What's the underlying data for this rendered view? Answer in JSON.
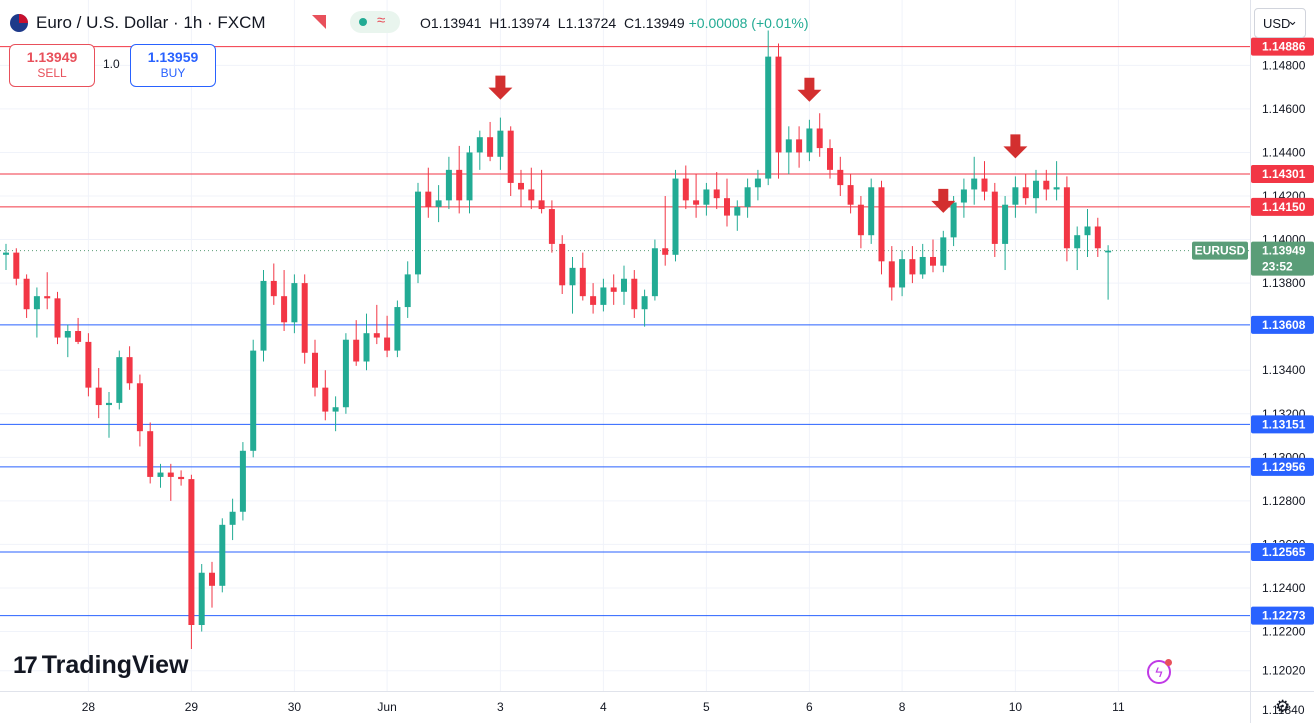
{
  "header": {
    "title": "Euro / U.S. Dollar · 1h · FXCM",
    "ohlc": {
      "open_label": "O",
      "open": "1.13941",
      "high_label": "H",
      "high": "1.13974",
      "low_label": "L",
      "low": "1.13724",
      "close_label": "C",
      "close": "1.13949",
      "change": "+0.00008 (+0.01%)"
    },
    "flag_icon": "euro-us-flag-icon",
    "pill_icon": "wave-icon",
    "pill_symbol": "≈"
  },
  "trade": {
    "sell_price": "1.13949",
    "sell_label": "SELL",
    "quantity": "1.0",
    "buy_price": "1.13959",
    "buy_label": "BUY"
  },
  "currency_button": "USD",
  "brand": {
    "logo_mark": "17",
    "logo_text": "TradingView"
  },
  "bolt_symbol": "ϟ",
  "gear_symbol": "⚙",
  "colors": {
    "bull": "#22ab94",
    "bear": "#f23645",
    "resistance": "#f23645",
    "support": "#2962ff",
    "current_price": "#5a9d78",
    "arrow": "#d32f2f"
  },
  "chart_data": {
    "type": "candlestick",
    "symbol_badge": "EURUSD",
    "current_price": "1.13949",
    "countdown": "23:52",
    "ylim": [
      1.1178,
      1.151
    ],
    "y_ticks": [
      "1.14800",
      "1.14600",
      "1.14400",
      "1.14200",
      "1.14000",
      "1.13800",
      "1.13400",
      "1.13200",
      "1.13000",
      "1.12800",
      "1.12600",
      "1.12400",
      "1.12200",
      "1.12020",
      "1.11840"
    ],
    "x_ticks": [
      {
        "label": "28",
        "candle": 8
      },
      {
        "label": "29",
        "candle": 18
      },
      {
        "label": "30",
        "candle": 28
      },
      {
        "label": "Jun",
        "candle": 37
      },
      {
        "label": "3",
        "candle": 48
      },
      {
        "label": "4",
        "candle": 58
      },
      {
        "label": "5",
        "candle": 68
      },
      {
        "label": "6",
        "candle": 78
      },
      {
        "label": "8",
        "candle": 87
      },
      {
        "label": "10",
        "candle": 98
      },
      {
        "label": "11",
        "candle": 108
      }
    ],
    "resistance_levels": [
      "1.14886",
      "1.14301",
      "1.14150"
    ],
    "support_levels": [
      "1.13608",
      "1.13151",
      "1.12956",
      "1.12565",
      "1.12273"
    ],
    "arrows_at_candles": [
      48,
      78,
      91,
      98
    ],
    "candles": [
      [
        1.1393,
        1.1398,
        1.1386,
        1.1394
      ],
      [
        1.1394,
        1.1396,
        1.1379,
        1.1382
      ],
      [
        1.1382,
        1.1384,
        1.1364,
        1.1368
      ],
      [
        1.1368,
        1.1378,
        1.1355,
        1.1374
      ],
      [
        1.1374,
        1.1385,
        1.1368,
        1.1373
      ],
      [
        1.1373,
        1.1376,
        1.1352,
        1.1355
      ],
      [
        1.1355,
        1.1361,
        1.1346,
        1.1358
      ],
      [
        1.1358,
        1.1364,
        1.1352,
        1.1353
      ],
      [
        1.1353,
        1.1357,
        1.1328,
        1.1332
      ],
      [
        1.1332,
        1.1341,
        1.1318,
        1.1324
      ],
      [
        1.1324,
        1.133,
        1.1309,
        1.1325
      ],
      [
        1.1325,
        1.1349,
        1.1322,
        1.1346
      ],
      [
        1.1346,
        1.1351,
        1.1331,
        1.1334
      ],
      [
        1.1334,
        1.1338,
        1.1305,
        1.1312
      ],
      [
        1.1312,
        1.1316,
        1.1288,
        1.1291
      ],
      [
        1.1291,
        1.1297,
        1.1286,
        1.1293
      ],
      [
        1.1293,
        1.1297,
        1.128,
        1.1291
      ],
      [
        1.1291,
        1.1294,
        1.1287,
        1.129
      ],
      [
        1.129,
        1.1292,
        1.1212,
        1.1223
      ],
      [
        1.1223,
        1.1251,
        1.122,
        1.1247
      ],
      [
        1.1247,
        1.1252,
        1.1231,
        1.1241
      ],
      [
        1.1241,
        1.1272,
        1.1238,
        1.1269
      ],
      [
        1.1269,
        1.1281,
        1.1262,
        1.1275
      ],
      [
        1.1275,
        1.1307,
        1.1271,
        1.1303
      ],
      [
        1.1303,
        1.1354,
        1.13,
        1.1349
      ],
      [
        1.1349,
        1.1386,
        1.1344,
        1.1381
      ],
      [
        1.1381,
        1.1389,
        1.137,
        1.1374
      ],
      [
        1.1374,
        1.1386,
        1.1358,
        1.1362
      ],
      [
        1.1362,
        1.1384,
        1.1357,
        1.138
      ],
      [
        1.138,
        1.1384,
        1.1343,
        1.1348
      ],
      [
        1.1348,
        1.1354,
        1.1328,
        1.1332
      ],
      [
        1.1332,
        1.134,
        1.1317,
        1.1321
      ],
      [
        1.1321,
        1.1328,
        1.1312,
        1.1323
      ],
      [
        1.1323,
        1.1357,
        1.132,
        1.1354
      ],
      [
        1.1354,
        1.1363,
        1.1342,
        1.1344
      ],
      [
        1.1344,
        1.1366,
        1.134,
        1.1357
      ],
      [
        1.1357,
        1.137,
        1.1352,
        1.1355
      ],
      [
        1.1355,
        1.1365,
        1.1346,
        1.1349
      ],
      [
        1.1349,
        1.1372,
        1.1346,
        1.1369
      ],
      [
        1.1369,
        1.139,
        1.1364,
        1.1384
      ],
      [
        1.1384,
        1.1426,
        1.138,
        1.1422
      ],
      [
        1.1422,
        1.1433,
        1.141,
        1.1415
      ],
      [
        1.1415,
        1.1425,
        1.1408,
        1.1418
      ],
      [
        1.1418,
        1.1438,
        1.1414,
        1.1432
      ],
      [
        1.1432,
        1.1443,
        1.1412,
        1.1418
      ],
      [
        1.1418,
        1.1443,
        1.1412,
        1.144
      ],
      [
        1.144,
        1.145,
        1.1432,
        1.1447
      ],
      [
        1.1447,
        1.1454,
        1.1436,
        1.1438
      ],
      [
        1.1438,
        1.1456,
        1.1432,
        1.145
      ],
      [
        1.145,
        1.1452,
        1.142,
        1.1426
      ],
      [
        1.1426,
        1.1432,
        1.1415,
        1.1423
      ],
      [
        1.1423,
        1.1433,
        1.1414,
        1.1418
      ],
      [
        1.1418,
        1.1432,
        1.1412,
        1.1414
      ],
      [
        1.1414,
        1.1418,
        1.1394,
        1.1398
      ],
      [
        1.1398,
        1.1402,
        1.1375,
        1.1379
      ],
      [
        1.1379,
        1.1392,
        1.1366,
        1.1387
      ],
      [
        1.1387,
        1.1394,
        1.1372,
        1.1374
      ],
      [
        1.1374,
        1.138,
        1.1366,
        1.137
      ],
      [
        1.137,
        1.1382,
        1.1367,
        1.1378
      ],
      [
        1.1378,
        1.1384,
        1.137,
        1.1376
      ],
      [
        1.1376,
        1.1388,
        1.137,
        1.1382
      ],
      [
        1.1382,
        1.1386,
        1.1364,
        1.1368
      ],
      [
        1.1368,
        1.1377,
        1.136,
        1.1374
      ],
      [
        1.1374,
        1.14,
        1.1372,
        1.1396
      ],
      [
        1.1396,
        1.142,
        1.1388,
        1.1393
      ],
      [
        1.1393,
        1.1432,
        1.139,
        1.1428
      ],
      [
        1.1428,
        1.1434,
        1.1414,
        1.1418
      ],
      [
        1.1418,
        1.143,
        1.141,
        1.1416
      ],
      [
        1.1416,
        1.1426,
        1.1411,
        1.1423
      ],
      [
        1.1423,
        1.1431,
        1.1414,
        1.1419
      ],
      [
        1.1419,
        1.1428,
        1.1406,
        1.1411
      ],
      [
        1.1411,
        1.1418,
        1.1404,
        1.1415
      ],
      [
        1.1415,
        1.1428,
        1.141,
        1.1424
      ],
      [
        1.1424,
        1.1432,
        1.1418,
        1.1428
      ],
      [
        1.1428,
        1.1496,
        1.1425,
        1.1484
      ],
      [
        1.1484,
        1.149,
        1.1428,
        1.144
      ],
      [
        1.144,
        1.1452,
        1.143,
        1.1446
      ],
      [
        1.1446,
        1.1452,
        1.1433,
        1.144
      ],
      [
        1.144,
        1.1455,
        1.1436,
        1.1451
      ],
      [
        1.1451,
        1.1458,
        1.1438,
        1.1442
      ],
      [
        1.1442,
        1.1446,
        1.1428,
        1.1432
      ],
      [
        1.1432,
        1.1438,
        1.142,
        1.1425
      ],
      [
        1.1425,
        1.143,
        1.1412,
        1.1416
      ],
      [
        1.1416,
        1.142,
        1.1396,
        1.1402
      ],
      [
        1.1402,
        1.1428,
        1.1398,
        1.1424
      ],
      [
        1.1424,
        1.1427,
        1.1384,
        1.139
      ],
      [
        1.139,
        1.1397,
        1.1372,
        1.1378
      ],
      [
        1.1378,
        1.1395,
        1.1374,
        1.1391
      ],
      [
        1.1391,
        1.1397,
        1.138,
        1.1384
      ],
      [
        1.1384,
        1.1398,
        1.1382,
        1.1392
      ],
      [
        1.1392,
        1.14,
        1.1385,
        1.1388
      ],
      [
        1.1388,
        1.1404,
        1.1385,
        1.1401
      ],
      [
        1.1401,
        1.142,
        1.1397,
        1.1417
      ],
      [
        1.1417,
        1.1428,
        1.141,
        1.1423
      ],
      [
        1.1423,
        1.1438,
        1.1416,
        1.1428
      ],
      [
        1.1428,
        1.1436,
        1.1418,
        1.1422
      ],
      [
        1.1422,
        1.1426,
        1.1392,
        1.1398
      ],
      [
        1.1398,
        1.142,
        1.1386,
        1.1416
      ],
      [
        1.1416,
        1.1429,
        1.141,
        1.1424
      ],
      [
        1.1424,
        1.143,
        1.1416,
        1.1419
      ],
      [
        1.1419,
        1.1432,
        1.1412,
        1.1427
      ],
      [
        1.1427,
        1.1432,
        1.1418,
        1.1423
      ],
      [
        1.1423,
        1.1436,
        1.1418,
        1.1424
      ],
      [
        1.1424,
        1.1429,
        1.139,
        1.1396
      ],
      [
        1.1396,
        1.1406,
        1.1386,
        1.1402
      ],
      [
        1.1402,
        1.1414,
        1.1392,
        1.1406
      ],
      [
        1.1406,
        1.141,
        1.1392,
        1.1396
      ],
      [
        1.13941,
        1.13974,
        1.13724,
        1.13949
      ]
    ]
  }
}
